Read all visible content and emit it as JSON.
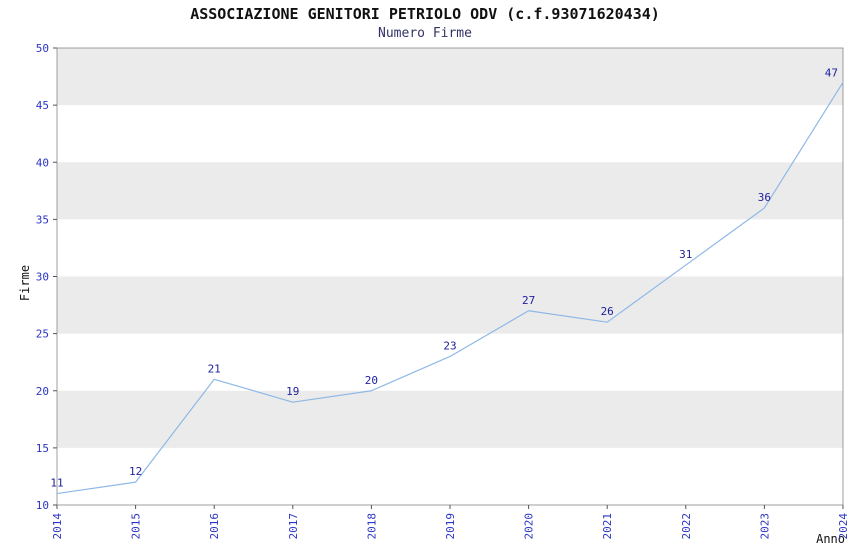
{
  "chart_data": {
    "type": "line",
    "title": "ASSOCIAZIONE GENITORI PETRIOLO ODV (c.f.93071620434)",
    "subtitle": "Numero Firme",
    "xlabel": "Anno",
    "ylabel": "Firme",
    "x": [
      "2014",
      "2015",
      "2016",
      "2017",
      "2018",
      "2019",
      "2020",
      "2021",
      "2022",
      "2023",
      "2024"
    ],
    "values": [
      11,
      12,
      21,
      19,
      20,
      23,
      27,
      26,
      31,
      36,
      47
    ],
    "ylim": [
      10,
      50
    ],
    "ytick_step": 5,
    "yticks": [
      10,
      15,
      20,
      25,
      30,
      35,
      40,
      45,
      50
    ],
    "legend": "none",
    "grid": "banded-background",
    "colors": {
      "line": "#8fb8e8",
      "band": "#ebebeb",
      "tick_label": "#2a35c4",
      "data_label": "#20209e",
      "axis": "#888888",
      "title": "#111111",
      "subtitle": "#333366"
    }
  }
}
